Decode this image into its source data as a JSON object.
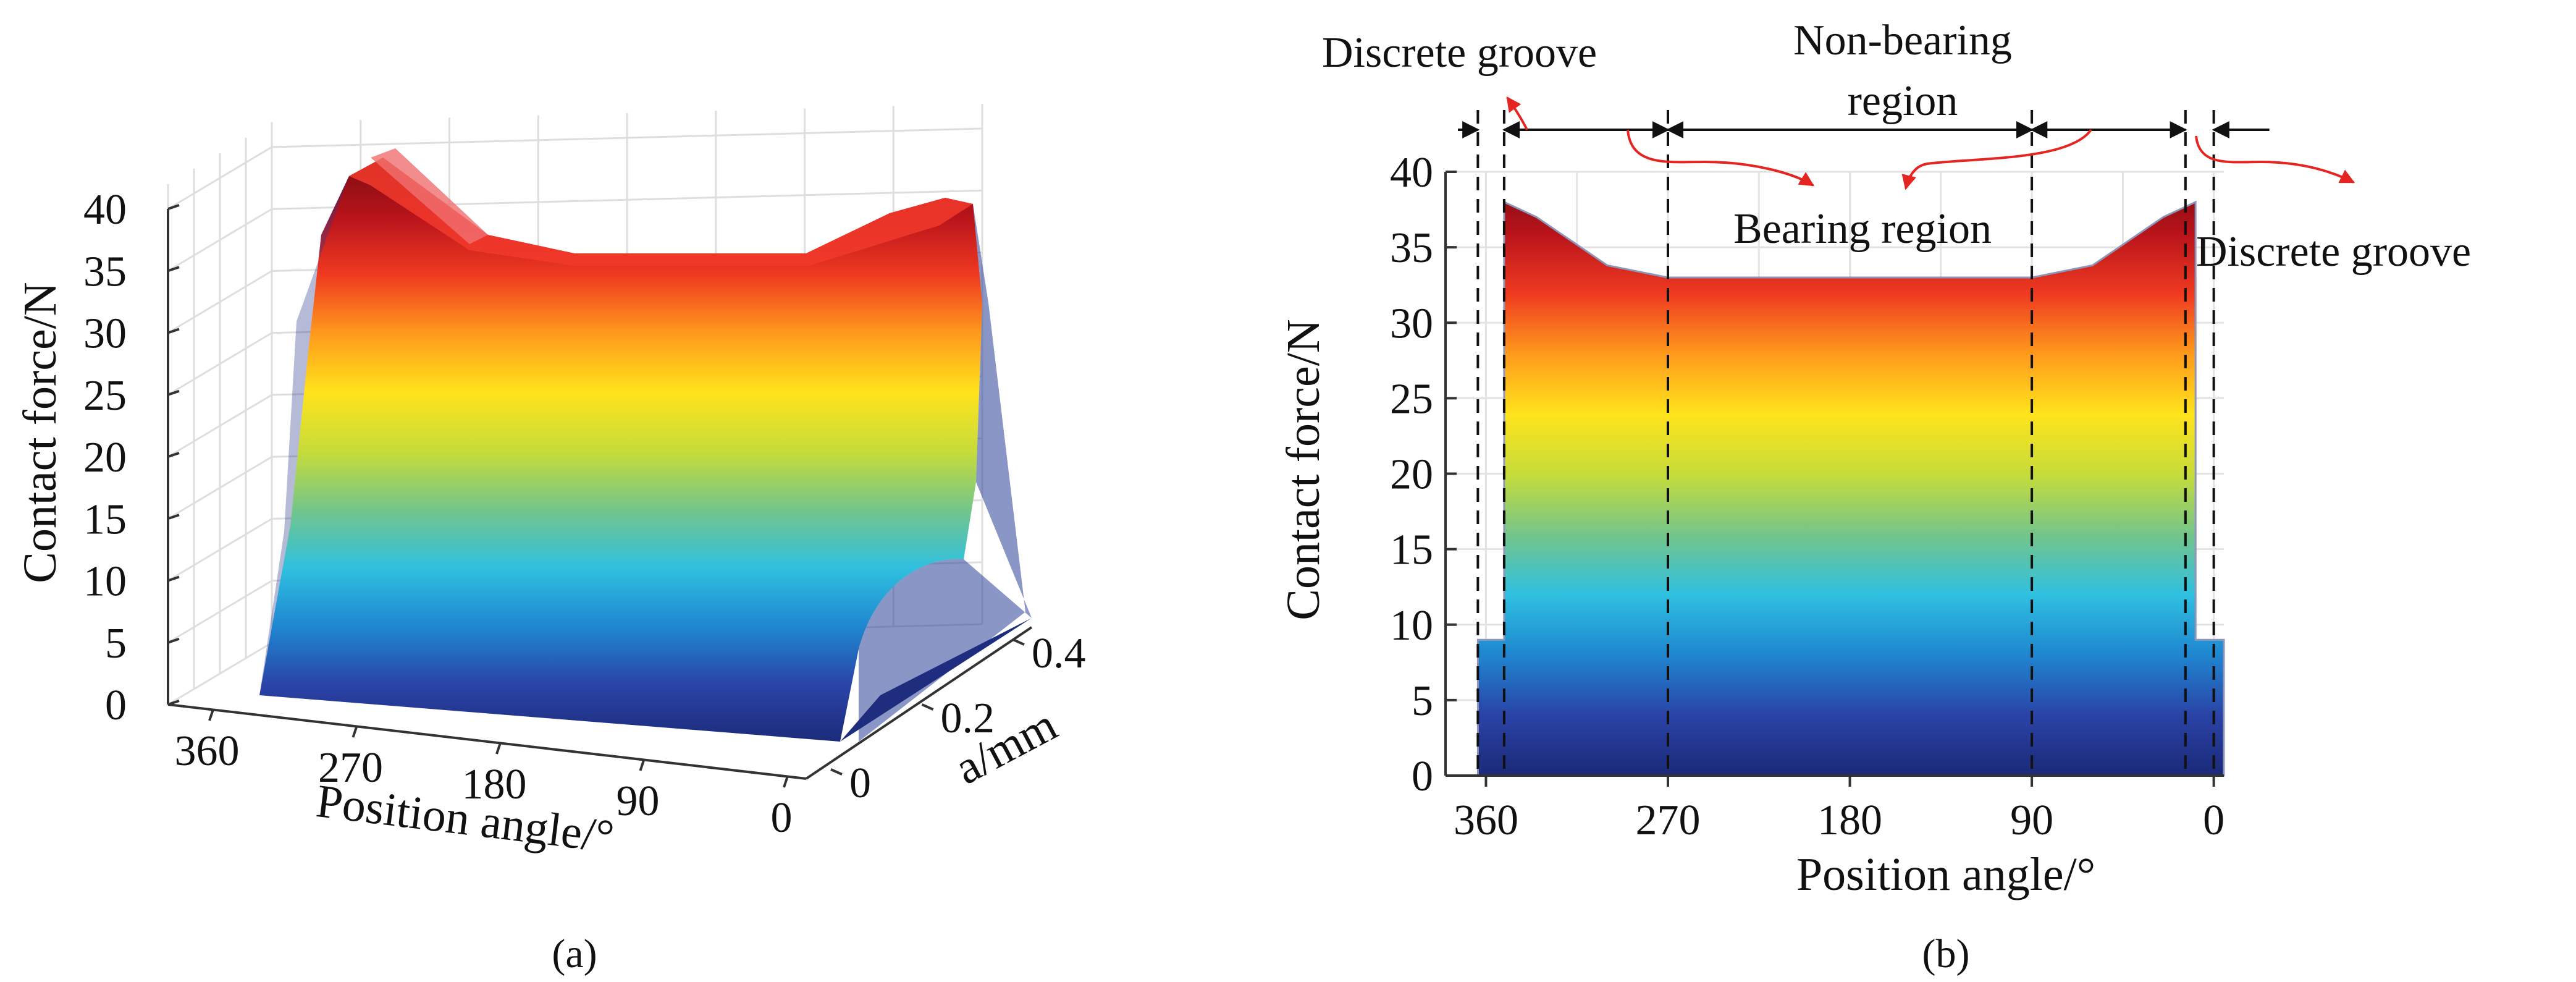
{
  "panels": [
    {
      "caption": "(a)"
    },
    {
      "caption": "(b)"
    }
  ],
  "annotations": {
    "discrete_groove_left": "Discrete groove",
    "non_bearing_line1": "Non-bearing",
    "non_bearing_line2": "region",
    "bearing_region": "Bearing region",
    "discrete_groove_right": "Discrete groove"
  },
  "colors": {
    "arrow_red": "#e52521",
    "colormap": [
      "#1b2a78",
      "#2a43a6",
      "#1f86d0",
      "#2fc0e0",
      "#74c58a",
      "#c7dc3a",
      "#ffe31c",
      "#ff9a1c",
      "#ef3a21",
      "#b8131b",
      "#7a0c10"
    ]
  },
  "chart_data": [
    {
      "type": "surface",
      "xlabel": "Position angle/°",
      "ylabel": "Contact force/N",
      "zlabel": "a/mm",
      "xticks": [
        "360",
        "270",
        "180",
        "90",
        "0"
      ],
      "yticks": [
        "0",
        "5",
        "10",
        "15",
        "20",
        "25",
        "30",
        "35",
        "40"
      ],
      "zticks": [
        "0",
        "0.2",
        "0.4"
      ],
      "xlim": [
        360,
        0
      ],
      "ylim": [
        0,
        40
      ],
      "zlim": [
        0,
        0.4
      ],
      "grid": true,
      "note": ""
    },
    {
      "type": "area",
      "xlabel": "Position angle/°",
      "ylabel": "Contact force/N",
      "xticks": [
        "360",
        "270",
        "180",
        "90",
        "0"
      ],
      "yticks": [
        "0",
        "5",
        "10",
        "15",
        "20",
        "25",
        "30",
        "35",
        "40"
      ],
      "xlim": [
        380,
        -5
      ],
      "ylim": [
        0,
        40
      ],
      "x": [
        364,
        364,
        351,
        351,
        335,
        300,
        270,
        180,
        90,
        60,
        25,
        9,
        9,
        -5,
        -5
      ],
      "y": [
        0,
        9,
        9,
        38,
        37,
        33.8,
        33,
        33,
        33,
        33.8,
        37,
        38,
        9,
        9,
        0
      ],
      "region_boundaries": [
        364,
        351,
        270,
        90,
        14,
        0
      ],
      "grid": true
    }
  ]
}
